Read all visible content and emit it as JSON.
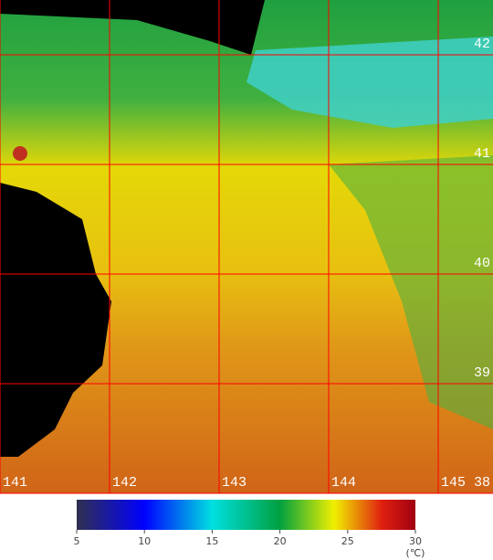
{
  "map": {
    "xlim": [
      141,
      145.5
    ],
    "ylim": [
      38,
      42.5
    ],
    "xticks": [
      141,
      142,
      143,
      144,
      145
    ],
    "yticks": [
      38,
      39,
      40,
      41,
      42
    ]
  },
  "colorbar": {
    "lim": [
      5,
      30
    ],
    "ticks": [
      5,
      10,
      15,
      20,
      25,
      30
    ],
    "unit": "(℃)"
  }
}
